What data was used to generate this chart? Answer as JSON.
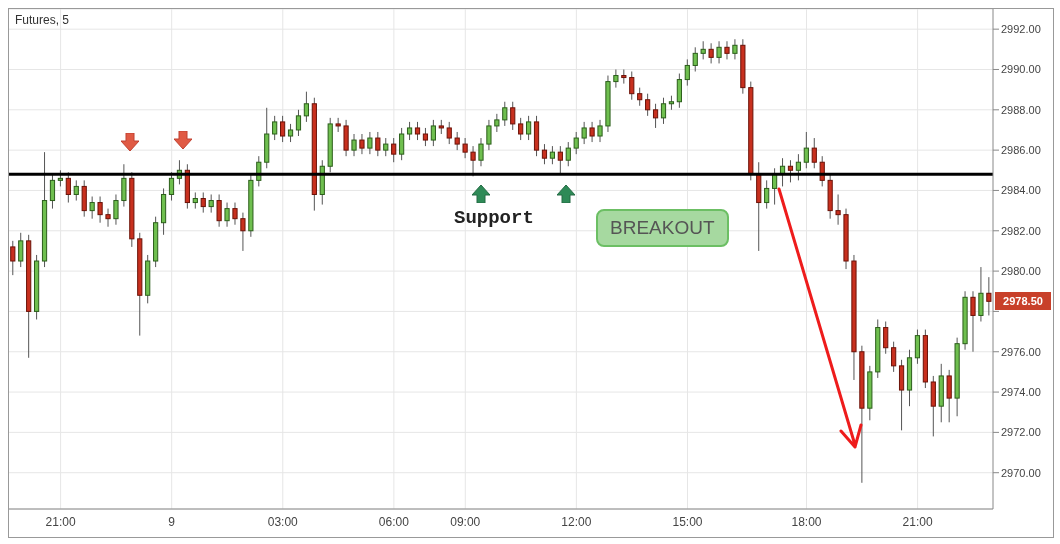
{
  "chart_data": {
    "type": "candlestick",
    "title": "Futures, 5",
    "categories": [
      null,
      null,
      null,
      null,
      null,
      null,
      "21:00",
      null,
      null,
      null,
      null,
      null,
      null,
      null,
      null,
      null,
      null,
      null,
      null,
      null,
      "9",
      null,
      null,
      null,
      null,
      null,
      null,
      null,
      null,
      null,
      null,
      null,
      null,
      null,
      "03:00",
      null,
      null,
      null,
      null,
      null,
      null,
      null,
      null,
      null,
      null,
      null,
      null,
      null,
      "06:00",
      null,
      null,
      null,
      null,
      null,
      null,
      null,
      null,
      "09:00",
      null,
      null,
      null,
      null,
      null,
      null,
      null,
      null,
      null,
      null,
      null,
      null,
      null,
      "12:00",
      null,
      null,
      null,
      null,
      null,
      null,
      null,
      null,
      null,
      null,
      null,
      null,
      null,
      "15:00",
      null,
      null,
      null,
      null,
      null,
      null,
      null,
      null,
      null,
      null,
      null,
      null,
      null,
      null,
      "18:00",
      null,
      null,
      null,
      null,
      null,
      null,
      null,
      null,
      null,
      null,
      null,
      null,
      null,
      "21:00",
      null,
      null,
      null,
      null,
      null,
      null,
      null,
      null,
      null
    ],
    "ohlc": [
      [
        2981.2,
        2981.5,
        2979.8,
        2980.5
      ],
      [
        2980.5,
        2981.9,
        2980.2,
        2981.5
      ],
      [
        2981.5,
        2981.8,
        2975.7,
        2978
      ],
      [
        2978,
        2980.8,
        2977.6,
        2980.5
      ],
      [
        2980.5,
        2985.9,
        2980.2,
        2983.5
      ],
      [
        2983.5,
        2984.8,
        2983.1,
        2984.5
      ],
      [
        2984.5,
        2985,
        2984.2,
        2984.6
      ],
      [
        2984.6,
        2984.9,
        2983.4,
        2983.8
      ],
      [
        2983.8,
        2984.5,
        2983.5,
        2984.2
      ],
      [
        2984.2,
        2984.5,
        2982.7,
        2983
      ],
      [
        2983,
        2983.7,
        2982.6,
        2983.4
      ],
      [
        2983.4,
        2983.7,
        2982.4,
        2982.8
      ],
      [
        2982.8,
        2983.1,
        2982.2,
        2982.6
      ],
      [
        2982.6,
        2983.8,
        2982.3,
        2983.5
      ],
      [
        2983.5,
        2985.3,
        2983.2,
        2984.6
      ],
      [
        2984.6,
        2984.9,
        2981.2,
        2981.6
      ],
      [
        2981.6,
        2981.9,
        2976.8,
        2978.8
      ],
      [
        2978.8,
        2980.8,
        2978.4,
        2980.5
      ],
      [
        2980.5,
        2982.7,
        2980.2,
        2982.4
      ],
      [
        2982.4,
        2984.1,
        2981.8,
        2983.8
      ],
      [
        2983.8,
        2984.9,
        2983.5,
        2984.6
      ],
      [
        2984.6,
        2985.5,
        2984.3,
        2985
      ],
      [
        2985,
        2985.3,
        2983.1,
        2983.4
      ],
      [
        2983.4,
        2983.9,
        2983.1,
        2983.6
      ],
      [
        2983.6,
        2983.9,
        2982.9,
        2983.2
      ],
      [
        2983.2,
        2983.8,
        2982.9,
        2983.5
      ],
      [
        2983.5,
        2983.8,
        2982.2,
        2982.5
      ],
      [
        2982.5,
        2983.4,
        2982.2,
        2983.1
      ],
      [
        2983.1,
        2983.4,
        2982.3,
        2982.6
      ],
      [
        2982.6,
        2982.9,
        2981,
        2982
      ],
      [
        2982,
        2984.8,
        2981.7,
        2984.5
      ],
      [
        2984.5,
        2985.7,
        2984.2,
        2985.4
      ],
      [
        2985.4,
        2988.1,
        2985.1,
        2986.8
      ],
      [
        2986.8,
        2987.7,
        2986.5,
        2987.4
      ],
      [
        2987.4,
        2987.7,
        2986.4,
        2986.7
      ],
      [
        2986.7,
        2987.3,
        2986.4,
        2987
      ],
      [
        2987,
        2988,
        2986.7,
        2987.7
      ],
      [
        2987.7,
        2988.9,
        2987.4,
        2988.3
      ],
      [
        2988.3,
        2988.6,
        2983,
        2983.8
      ],
      [
        2983.8,
        2985.5,
        2983.3,
        2985.2
      ],
      [
        2985.2,
        2987.6,
        2984.9,
        2987.3
      ],
      [
        2987.3,
        2987.6,
        2986.9,
        2987.2
      ],
      [
        2987.2,
        2987.5,
        2985.7,
        2986
      ],
      [
        2986,
        2986.8,
        2985.7,
        2986.5
      ],
      [
        2986.5,
        2986.8,
        2985.8,
        2986.1
      ],
      [
        2986.1,
        2986.9,
        2985.8,
        2986.6
      ],
      [
        2986.6,
        2986.9,
        2985.7,
        2986
      ],
      [
        2986,
        2986.6,
        2985.7,
        2986.3
      ],
      [
        2986.3,
        2986.6,
        2985.4,
        2985.8
      ],
      [
        2985.8,
        2987.1,
        2985.5,
        2986.8
      ],
      [
        2986.8,
        2987.4,
        2986.5,
        2987.1
      ],
      [
        2987.1,
        2987.4,
        2986.5,
        2986.8
      ],
      [
        2986.8,
        2987.1,
        2986.2,
        2986.5
      ],
      [
        2986.5,
        2987.5,
        2986.2,
        2987.2
      ],
      [
        2987.2,
        2987.5,
        2986.8,
        2987.1
      ],
      [
        2987.1,
        2987.4,
        2986.3,
        2986.6
      ],
      [
        2986.6,
        2986.9,
        2986,
        2986.3
      ],
      [
        2986.3,
        2986.6,
        2985.6,
        2985.9
      ],
      [
        2985.9,
        2986.2,
        2984.7,
        2985.5
      ],
      [
        2985.5,
        2986.6,
        2985.2,
        2986.3
      ],
      [
        2986.3,
        2987.5,
        2986,
        2987.2
      ],
      [
        2987.2,
        2987.8,
        2986.9,
        2987.5
      ],
      [
        2987.5,
        2988.4,
        2987.2,
        2988.1
      ],
      [
        2988.1,
        2988.4,
        2987,
        2987.3
      ],
      [
        2987.3,
        2987.6,
        2986.5,
        2986.8
      ],
      [
        2986.8,
        2987.7,
        2986.5,
        2987.4
      ],
      [
        2987.4,
        2987.7,
        2985.7,
        2986
      ],
      [
        2986,
        2986.3,
        2985.3,
        2985.6
      ],
      [
        2985.6,
        2986.2,
        2985.3,
        2985.9
      ],
      [
        2985.9,
        2986.2,
        2984.8,
        2985.5
      ],
      [
        2985.5,
        2986.4,
        2985.2,
        2986.1
      ],
      [
        2986.1,
        2986.9,
        2985.8,
        2986.6
      ],
      [
        2986.6,
        2987.4,
        2986.3,
        2987.1
      ],
      [
        2987.1,
        2987.4,
        2986.4,
        2986.7
      ],
      [
        2986.7,
        2987.5,
        2986.4,
        2987.2
      ],
      [
        2987.2,
        2989.7,
        2986.9,
        2989.4
      ],
      [
        2989.4,
        2990,
        2989.1,
        2989.7
      ],
      [
        2989.7,
        2990,
        2989.3,
        2989.6
      ],
      [
        2989.6,
        2989.9,
        2988.5,
        2988.8
      ],
      [
        2988.8,
        2989.1,
        2988.2,
        2988.5
      ],
      [
        2988.5,
        2988.8,
        2987.7,
        2988
      ],
      [
        2988,
        2988.3,
        2987.1,
        2987.6
      ],
      [
        2987.6,
        2988.6,
        2987.3,
        2988.3
      ],
      [
        2988.3,
        2988.7,
        2988,
        2988.4
      ],
      [
        2988.4,
        2989.8,
        2988.1,
        2989.5
      ],
      [
        2989.5,
        2990.5,
        2989.2,
        2990.2
      ],
      [
        2990.2,
        2991.1,
        2989.9,
        2990.8
      ],
      [
        2990.8,
        2991.4,
        2990.5,
        2991
      ],
      [
        2991,
        2991.3,
        2990.3,
        2990.6
      ],
      [
        2990.6,
        2991.4,
        2990.3,
        2991.1
      ],
      [
        2991.1,
        2991.4,
        2990.5,
        2990.8
      ],
      [
        2990.8,
        2991.5,
        2990.5,
        2991.2
      ],
      [
        2991.2,
        2991.5,
        2988.8,
        2989.1
      ],
      [
        2989.1,
        2989.4,
        2984.5,
        2984.8
      ],
      [
        2984.8,
        2985.4,
        2981,
        2983.4
      ],
      [
        2983.4,
        2984.5,
        2983.1,
        2984.1
      ],
      [
        2984.1,
        2985.1,
        2983.3,
        2984.8
      ],
      [
        2984.8,
        2985.6,
        2984.2,
        2985.2
      ],
      [
        2985.2,
        2985.5,
        2984.4,
        2985
      ],
      [
        2985,
        2985.8,
        2984.5,
        2985.4
      ],
      [
        2985.4,
        2986.9,
        2985.1,
        2986.1
      ],
      [
        2986.1,
        2986.6,
        2985.1,
        2985.4
      ],
      [
        2985.4,
        2985.7,
        2984.2,
        2984.5
      ],
      [
        2984.5,
        2984.8,
        2982.6,
        2983
      ],
      [
        2983,
        2983.8,
        2982.3,
        2982.8
      ],
      [
        2982.8,
        2983.1,
        2980.1,
        2980.5
      ],
      [
        2980.5,
        2980.8,
        2974.6,
        2976
      ],
      [
        2976,
        2976.3,
        2969.5,
        2973.2
      ],
      [
        2973.2,
        2975.3,
        2972.6,
        2975
      ],
      [
        2975,
        2977.6,
        2974.7,
        2977.2
      ],
      [
        2977.2,
        2977.5,
        2975.9,
        2976.2
      ],
      [
        2976.2,
        2976.5,
        2975,
        2975.3
      ],
      [
        2975.3,
        2975.6,
        2972.1,
        2974.1
      ],
      [
        2974.1,
        2976.1,
        2973.3,
        2975.7
      ],
      [
        2975.7,
        2977.1,
        2975.4,
        2976.8
      ],
      [
        2976.8,
        2977.1,
        2974.2,
        2974.5
      ],
      [
        2974.5,
        2974.8,
        2971.8,
        2973.3
      ],
      [
        2973.3,
        2975.4,
        2972.5,
        2974.8
      ],
      [
        2974.8,
        2975.1,
        2972.5,
        2973.7
      ],
      [
        2973.7,
        2976.7,
        2972.8,
        2976.4
      ],
      [
        2976.4,
        2979,
        2976.1,
        2978.7
      ],
      [
        2978.7,
        2979,
        2976,
        2977.8
      ],
      [
        2977.8,
        2980.2,
        2977.5,
        2978.9
      ],
      [
        2978.9,
        2979.7,
        2977.8,
        2978.5
      ]
    ],
    "colors": [
      "#c8301e",
      "#6fbf4f",
      "#c8301e",
      "#6fbf4f",
      "#6fbf4f",
      "#6fbf4f",
      "#6fbf4f",
      "#c8301e",
      "#6fbf4f",
      "#c8301e",
      "#6fbf4f",
      "#c8301e",
      "#c8301e",
      "#6fbf4f",
      "#6fbf4f",
      "#c8301e",
      "#c8301e",
      "#6fbf4f",
      "#6fbf4f",
      "#6fbf4f",
      "#6fbf4f",
      "#6fbf4f",
      "#c8301e",
      "#6fbf4f",
      "#c8301e",
      "#6fbf4f",
      "#c8301e",
      "#6fbf4f",
      "#c8301e",
      "#c8301e",
      "#6fbf4f",
      "#6fbf4f",
      "#6fbf4f",
      "#6fbf4f",
      "#c8301e",
      "#6fbf4f",
      "#6fbf4f",
      "#6fbf4f",
      "#c8301e",
      "#6fbf4f",
      "#6fbf4f",
      "#c8301e",
      "#c8301e",
      "#6fbf4f",
      "#c8301e",
      "#6fbf4f",
      "#c8301e",
      "#6fbf4f",
      "#c8301e",
      "#6fbf4f",
      "#6fbf4f",
      "#c8301e",
      "#c8301e",
      "#6fbf4f",
      "#c8301e",
      "#c8301e",
      "#c8301e",
      "#c8301e",
      "#c8301e",
      "#6fbf4f",
      "#6fbf4f",
      "#6fbf4f",
      "#6fbf4f",
      "#c8301e",
      "#c8301e",
      "#6fbf4f",
      "#c8301e",
      "#c8301e",
      "#6fbf4f",
      "#c8301e",
      "#6fbf4f",
      "#6fbf4f",
      "#6fbf4f",
      "#c8301e",
      "#6fbf4f",
      "#6fbf4f",
      "#6fbf4f",
      "#c8301e",
      "#c8301e",
      "#c8301e",
      "#c8301e",
      "#c8301e",
      "#6fbf4f",
      "#6fbf4f",
      "#6fbf4f",
      "#6fbf4f",
      "#6fbf4f",
      "#6fbf4f",
      "#c8301e",
      "#6fbf4f",
      "#c8301e",
      "#6fbf4f",
      "#c8301e",
      "#c8301e",
      "#c8301e",
      "#6fbf4f",
      "#6fbf4f",
      "#6fbf4f",
      "#c8301e",
      "#6fbf4f",
      "#6fbf4f",
      "#c8301e",
      "#c8301e",
      "#c8301e",
      "#c8301e",
      "#c8301e",
      "#c8301e",
      "#c8301e",
      "#6fbf4f",
      "#6fbf4f",
      "#c8301e",
      "#c8301e",
      "#c8301e",
      "#6fbf4f",
      "#6fbf4f",
      "#c8301e",
      "#c8301e",
      "#6fbf4f",
      "#c8301e",
      "#6fbf4f",
      "#6fbf4f",
      "#c8301e",
      "#6fbf4f",
      "#c8301e"
    ],
    "ylim": [
      2968.2,
      2993
    ],
    "yticks": [
      {
        "value": 2970,
        "label": "2970.00"
      },
      {
        "value": 2972,
        "label": "2972.00"
      },
      {
        "value": 2974,
        "label": "2974.00"
      },
      {
        "value": 2976,
        "label": "2976.00"
      },
      {
        "value": 2978,
        "label": null
      },
      {
        "value": 2980,
        "label": "2980.00"
      },
      {
        "value": 2982,
        "label": "2982.00"
      },
      {
        "value": 2984,
        "label": "2984.00"
      },
      {
        "value": 2986,
        "label": "2986.00"
      },
      {
        "value": 2988,
        "label": "2988.00"
      },
      {
        "value": 2990,
        "label": "2990.00"
      },
      {
        "value": 2992,
        "label": "2992.00"
      }
    ],
    "grid": true,
    "ref_lines": [
      {
        "axis": "y",
        "value": 2984.8,
        "color": "#000000"
      }
    ],
    "annotations": [
      "Support",
      "BREAKOUT",
      "2978.50"
    ]
  }
}
